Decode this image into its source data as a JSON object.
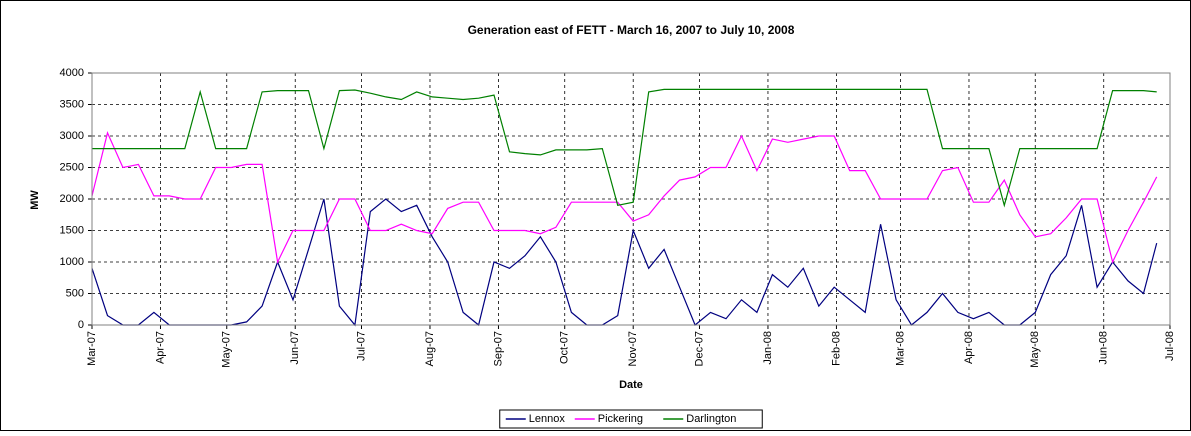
{
  "chart_data": {
    "type": "line",
    "title": "Generation east of FETT - March 16, 2007 to July 10, 2008",
    "x_label": "Date",
    "y_label": "MW",
    "x": [
      "2007-03-16",
      "2007-03-23",
      "2007-03-30",
      "2007-04-06",
      "2007-04-13",
      "2007-04-20",
      "2007-04-27",
      "2007-05-04",
      "2007-05-11",
      "2007-05-18",
      "2007-05-25",
      "2007-06-01",
      "2007-06-08",
      "2007-06-15",
      "2007-06-22",
      "2007-06-29",
      "2007-07-06",
      "2007-07-13",
      "2007-07-20",
      "2007-07-27",
      "2007-08-03",
      "2007-08-10",
      "2007-08-17",
      "2007-08-24",
      "2007-08-31",
      "2007-09-07",
      "2007-09-14",
      "2007-09-21",
      "2007-09-28",
      "2007-10-05",
      "2007-10-12",
      "2007-10-19",
      "2007-10-26",
      "2007-11-02",
      "2007-11-09",
      "2007-11-16",
      "2007-11-23",
      "2007-11-30",
      "2007-12-07",
      "2007-12-14",
      "2007-12-21",
      "2007-12-28",
      "2008-01-04",
      "2008-01-11",
      "2008-01-18",
      "2008-01-25",
      "2008-02-01",
      "2008-02-08",
      "2008-02-15",
      "2008-02-22",
      "2008-02-29",
      "2008-03-07",
      "2008-03-14",
      "2008-03-21",
      "2008-03-28",
      "2008-04-04",
      "2008-04-11",
      "2008-04-18",
      "2008-04-25",
      "2008-05-02",
      "2008-05-09",
      "2008-05-16",
      "2008-05-23",
      "2008-05-30",
      "2008-06-06",
      "2008-06-13",
      "2008-06-20",
      "2008-06-27",
      "2008-07-04",
      "2008-07-10"
    ],
    "series": [
      {
        "name": "Lennox",
        "color": "#000080",
        "values": [
          900,
          150,
          0,
          0,
          200,
          0,
          0,
          0,
          0,
          0,
          50,
          300,
          1000,
          400,
          1200,
          2000,
          300,
          0,
          1800,
          2000,
          1800,
          1900,
          1400,
          1000,
          200,
          0,
          1000,
          900,
          1100,
          1400,
          1000,
          200,
          0,
          0,
          150,
          1500,
          900,
          1200,
          600,
          0,
          200,
          100,
          400,
          200,
          800,
          600,
          900,
          300,
          600,
          400,
          200,
          1600,
          400,
          0,
          200,
          500,
          200,
          100,
          200,
          0,
          0,
          200,
          800,
          1100,
          1900,
          600,
          1000,
          700,
          500,
          1300
        ]
      },
      {
        "name": "Pickering",
        "color": "#ff00ff",
        "values": [
          2050,
          3050,
          2500,
          2550,
          2050,
          2050,
          2000,
          2000,
          2500,
          2500,
          2550,
          2550,
          1000,
          1500,
          1500,
          1500,
          2000,
          2000,
          1500,
          1500,
          1600,
          1500,
          1450,
          1850,
          1950,
          1950,
          1500,
          1500,
          1500,
          1450,
          1550,
          1950,
          1950,
          1950,
          1950,
          1650,
          1750,
          2050,
          2300,
          2350,
          2500,
          2500,
          3000,
          2450,
          2950,
          2900,
          2950,
          3000,
          3000,
          2450,
          2450,
          2000,
          2000,
          2000,
          2000,
          2450,
          2500,
          1950,
          1950,
          2300,
          1750,
          1400,
          1450,
          1700,
          2000,
          2000,
          1000,
          1500,
          1950,
          2350
        ]
      },
      {
        "name": "Darlington",
        "color": "#008000",
        "values": [
          2800,
          2800,
          2800,
          2800,
          2800,
          2800,
          2800,
          3700,
          2800,
          2800,
          2800,
          3700,
          3720,
          3720,
          3720,
          2800,
          3720,
          3730,
          3680,
          3620,
          3580,
          3700,
          3620,
          3600,
          3580,
          3600,
          3650,
          2750,
          2720,
          2700,
          2780,
          2780,
          2780,
          2800,
          1900,
          1950,
          3700,
          3740,
          3740,
          3740,
          3740,
          3740,
          3740,
          3740,
          3740,
          3740,
          3740,
          3740,
          3740,
          3740,
          3740,
          3740,
          3740,
          3740,
          3740,
          2800,
          2800,
          2800,
          2800,
          1900,
          2800,
          2800,
          2800,
          2800,
          2800,
          2800,
          3720,
          3720,
          3720,
          3700
        ]
      }
    ],
    "xlim": [
      "2007-03-16",
      "2008-07-16"
    ],
    "xticks": [
      {
        "value": "2007-03-16",
        "label": "Mar-07"
      },
      {
        "value": "2007-04-16",
        "label": "Apr-07"
      },
      {
        "value": "2007-05-16",
        "label": "May-07"
      },
      {
        "value": "2007-06-16",
        "label": "Jun-07"
      },
      {
        "value": "2007-07-16",
        "label": "Jul-07"
      },
      {
        "value": "2007-08-16",
        "label": "Aug-07"
      },
      {
        "value": "2007-09-16",
        "label": "Sep-07"
      },
      {
        "value": "2007-10-16",
        "label": "Oct-07"
      },
      {
        "value": "2007-11-16",
        "label": "Nov-07"
      },
      {
        "value": "2007-12-16",
        "label": "Dec-07"
      },
      {
        "value": "2008-01-16",
        "label": "Jan-08"
      },
      {
        "value": "2008-02-16",
        "label": "Feb-08"
      },
      {
        "value": "2008-03-16",
        "label": "Mar-08"
      },
      {
        "value": "2008-04-16",
        "label": "Apr-08"
      },
      {
        "value": "2008-05-16",
        "label": "May-08"
      },
      {
        "value": "2008-06-16",
        "label": "Jun-08"
      },
      {
        "value": "2008-07-16",
        "label": "Jul-08"
      }
    ],
    "ylim": [
      0,
      4000
    ],
    "yticks": [
      0,
      500,
      1000,
      1500,
      2000,
      2500,
      3000,
      3500,
      4000
    ],
    "grid": true,
    "legend": "bottom"
  }
}
